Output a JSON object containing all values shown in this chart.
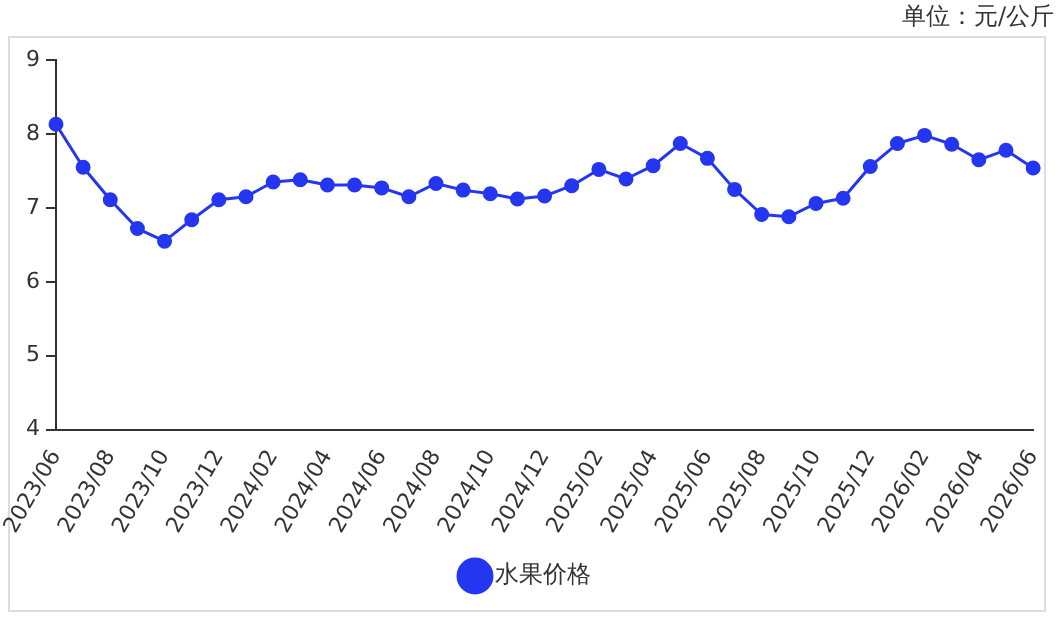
{
  "chart_data": {
    "type": "line",
    "annotations": [
      "单位：元/公斤"
    ],
    "categories": [
      "2023/06",
      null,
      "2023/08",
      null,
      "2023/10",
      null,
      "2023/12",
      null,
      "2024/02",
      null,
      "2024/04",
      null,
      "2024/06",
      null,
      "2024/08",
      null,
      "2024/10",
      null,
      "2024/12",
      null,
      "2025/02",
      null,
      "2025/04",
      null,
      "2025/06",
      null,
      "2025/08",
      null,
      "2025/10",
      null,
      "2025/12",
      null,
      "2026/02",
      null,
      "2026/04",
      null,
      "2026/06"
    ],
    "series": [
      {
        "name": "水果价格",
        "color": "#2436f0",
        "values": [
          8.13,
          7.55,
          7.11,
          6.72,
          6.55,
          6.84,
          7.11,
          7.15,
          7.35,
          7.38,
          7.31,
          7.31,
          7.27,
          7.15,
          7.33,
          7.24,
          7.19,
          7.12,
          7.16,
          7.3,
          7.52,
          7.39,
          7.57,
          7.87,
          7.67,
          7.25,
          6.91,
          6.88,
          7.06,
          7.13,
          7.56,
          7.87,
          7.98,
          7.86,
          7.65,
          7.78,
          7.54
        ]
      }
    ],
    "ylim": [
      4,
      9
    ],
    "yticks": [
      4,
      5,
      6,
      7,
      8,
      9
    ],
    "grid": false,
    "legend": "bottom",
    "marker": "circle",
    "line_style": "solid"
  }
}
